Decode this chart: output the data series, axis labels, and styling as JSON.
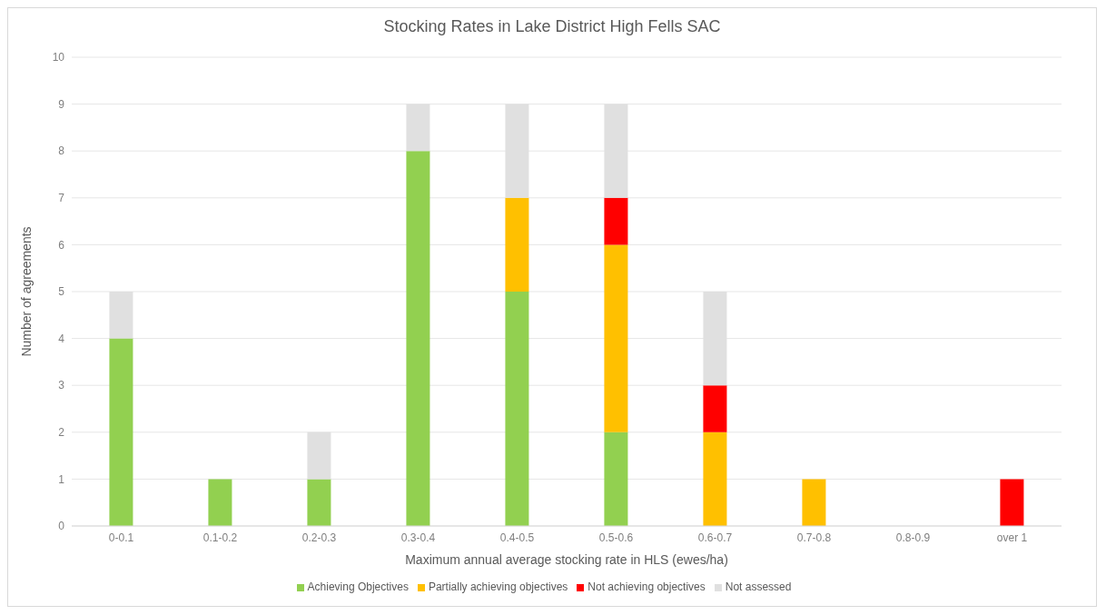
{
  "chart_data": {
    "type": "bar",
    "title": "Stocking Rates in Lake District High Fells SAC",
    "xlabel": "Maximum annual average stocking rate in HLS (ewes/ha)",
    "ylabel": "Number of agreements",
    "categories": [
      "0-0.1",
      "0.1-0.2",
      "0.2-0.3",
      "0.3-0.4",
      "0.4-0.5",
      "0.5-0.6",
      "0.6-0.7",
      "0.7-0.8",
      "0.8-0.9",
      "over 1"
    ],
    "series": [
      {
        "name": "Achieving Objectives",
        "color": "#92d050",
        "values": [
          4,
          1,
          1,
          8,
          5,
          2,
          0,
          0,
          0,
          0
        ]
      },
      {
        "name": "Partially achieving objectives",
        "color": "#ffc000",
        "values": [
          0,
          0,
          0,
          0,
          2,
          4,
          2,
          1,
          0,
          0
        ]
      },
      {
        "name": "Not achieving objectives",
        "color": "#ff0000",
        "values": [
          0,
          0,
          0,
          0,
          0,
          1,
          1,
          0,
          0,
          1
        ]
      },
      {
        "name": "Not assessed",
        "color": "#e0e0e0",
        "values": [
          1,
          0,
          1,
          1,
          2,
          2,
          2,
          0,
          0,
          0
        ]
      }
    ],
    "stacked": true,
    "ylim": [
      0,
      10
    ],
    "yticks": [
      0,
      1,
      2,
      3,
      4,
      5,
      6,
      7,
      8,
      9,
      10
    ],
    "grid": "y",
    "legend": "bottom"
  }
}
